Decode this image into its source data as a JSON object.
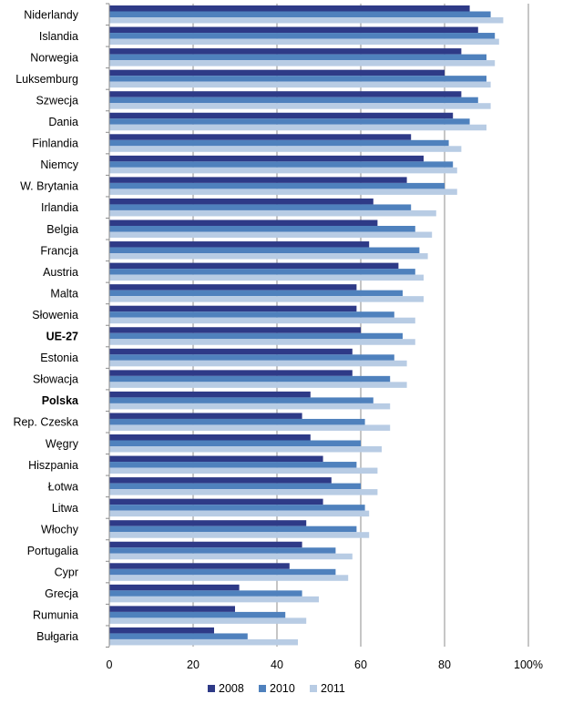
{
  "chart_data": {
    "type": "bar",
    "orientation": "horizontal",
    "categories": [
      "Niderlandy",
      "Islandia",
      "Norwegia",
      "Luksemburg",
      "Szwecja",
      "Dania",
      "Finlandia",
      "Niemcy",
      "W. Brytania",
      "Irlandia",
      "Belgia",
      "Francja",
      "Austria",
      "Malta",
      "Słowenia",
      "UE-27",
      "Estonia",
      "Słowacja",
      "Polska",
      "Rep. Czeska",
      "Węgry",
      "Hiszpania",
      "Łotwa",
      "Litwa",
      "Włochy",
      "Portugalia",
      "Cypr",
      "Grecja",
      "Rumunia",
      "Bułgaria"
    ],
    "bold_categories": [
      "UE-27",
      "Polska"
    ],
    "series": [
      {
        "name": "2008",
        "color": "#2e3a87",
        "values": [
          86,
          88,
          84,
          80,
          84,
          82,
          72,
          75,
          71,
          63,
          64,
          62,
          69,
          59,
          59,
          60,
          58,
          58,
          48,
          46,
          48,
          51,
          53,
          51,
          47,
          46,
          43,
          31,
          30,
          25
        ]
      },
      {
        "name": "2010",
        "color": "#4f81bd",
        "values": [
          91,
          92,
          90,
          90,
          88,
          86,
          81,
          82,
          80,
          72,
          73,
          74,
          73,
          70,
          68,
          70,
          68,
          67,
          63,
          61,
          60,
          59,
          60,
          61,
          59,
          54,
          54,
          46,
          42,
          33
        ]
      },
      {
        "name": "2011",
        "color": "#b8cce4",
        "values": [
          94,
          93,
          92,
          91,
          91,
          90,
          84,
          83,
          83,
          78,
          77,
          76,
          75,
          75,
          73,
          73,
          71,
          71,
          67,
          67,
          65,
          64,
          64,
          62,
          62,
          58,
          57,
          50,
          47,
          45
        ]
      }
    ],
    "x_ticks": [
      "0",
      "20",
      "40",
      "60",
      "80",
      "100%"
    ],
    "xlim": [
      0,
      100
    ],
    "grid": true,
    "legend_position": "bottom",
    "title": "",
    "xlabel": "",
    "ylabel": ""
  }
}
